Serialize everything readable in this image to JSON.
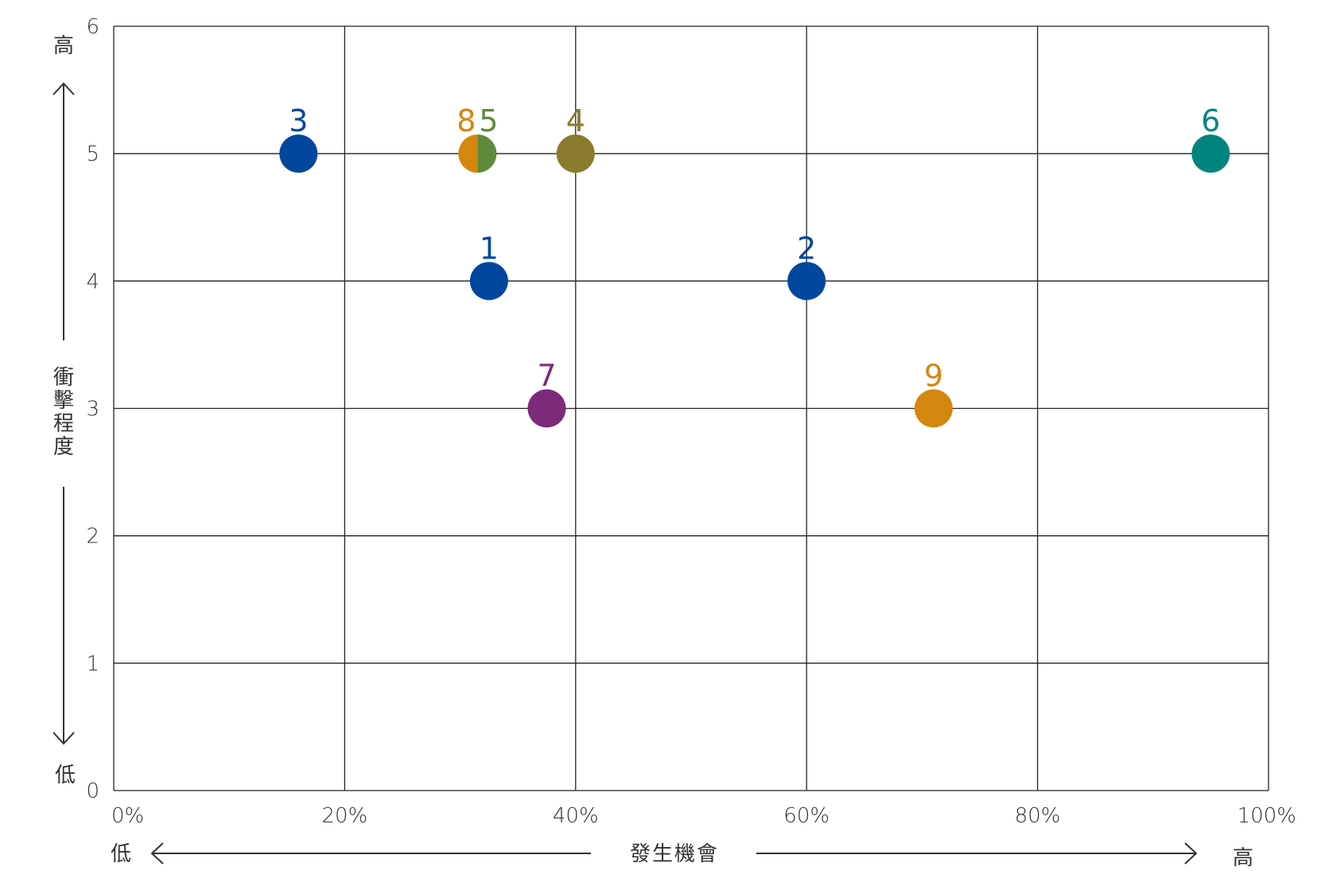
{
  "chart_data": {
    "type": "scatter",
    "title": "",
    "xlabel": "發生機會",
    "ylabel": "衝擊程度",
    "xlim": [
      0,
      100
    ],
    "ylim": [
      0,
      6
    ],
    "x_ticks": [
      "0%",
      "20%",
      "40%",
      "60%",
      "80%",
      "100%"
    ],
    "y_ticks": [
      "0",
      "1",
      "2",
      "3",
      "4",
      "5",
      "6"
    ],
    "x_low_label": "低",
    "x_high_label": "高",
    "y_low_label": "低",
    "y_high_label": "高",
    "grid": true,
    "points": [
      {
        "id": "1",
        "x": 32.5,
        "y": 4,
        "color": "#00479d"
      },
      {
        "id": "2",
        "x": 60,
        "y": 4,
        "color": "#00479d"
      },
      {
        "id": "3",
        "x": 16,
        "y": 5,
        "color": "#00479d"
      },
      {
        "id": "4",
        "x": 40,
        "y": 5,
        "color": "#8a7a2d"
      },
      {
        "id": "5",
        "x": 31.5,
        "y": 5,
        "color": "#5f8a3c"
      },
      {
        "id": "6",
        "x": 95,
        "y": 5,
        "color": "#00857e"
      },
      {
        "id": "7",
        "x": 37.5,
        "y": 3,
        "color": "#7c2a7a"
      },
      {
        "id": "8",
        "x": 31.5,
        "y": 5,
        "color": "#d4870e"
      },
      {
        "id": "9",
        "x": 71,
        "y": 3,
        "color": "#d4870e"
      }
    ]
  }
}
